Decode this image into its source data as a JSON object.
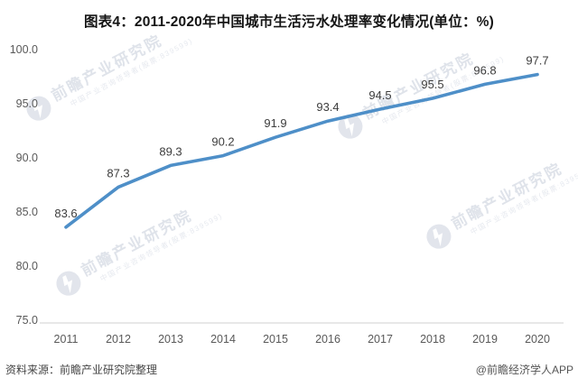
{
  "title": "图表4：2011-2020年中国城市生活污水处理率变化情况(单位：%)",
  "chart_data": {
    "type": "line",
    "title": "图表4：2011-2020年中国城市生活污水处理率变化情况(单位：%)",
    "unit": "%",
    "categories": [
      "2011",
      "2012",
      "2013",
      "2014",
      "2015",
      "2016",
      "2017",
      "2018",
      "2019",
      "2020"
    ],
    "series": [
      {
        "name": "城市生活污水处理率",
        "values": [
          83.6,
          87.3,
          89.3,
          90.2,
          91.9,
          93.4,
          94.5,
          95.5,
          96.8,
          97.7
        ]
      }
    ],
    "ylim": [
      75.0,
      100.0
    ],
    "yticks": [
      100.0,
      95.0,
      90.0,
      85.0,
      80.0,
      75.0
    ],
    "grid": false,
    "legend": "none",
    "data_labels": true,
    "line_color": "#4e8fc8",
    "axis_line_color": "#d9d9d9",
    "tick_label_color": "#595959",
    "data_label_color": "#3d3d3d"
  },
  "watermark": {
    "main": "前瞻产业研究院",
    "sub": "中国产业咨询领导者(股票:839599)",
    "logo": "qianzhan-logo"
  },
  "footer": {
    "source": "资料来源：前瞻产业研究院整理",
    "credit": "@前瞻经济学人APP"
  }
}
